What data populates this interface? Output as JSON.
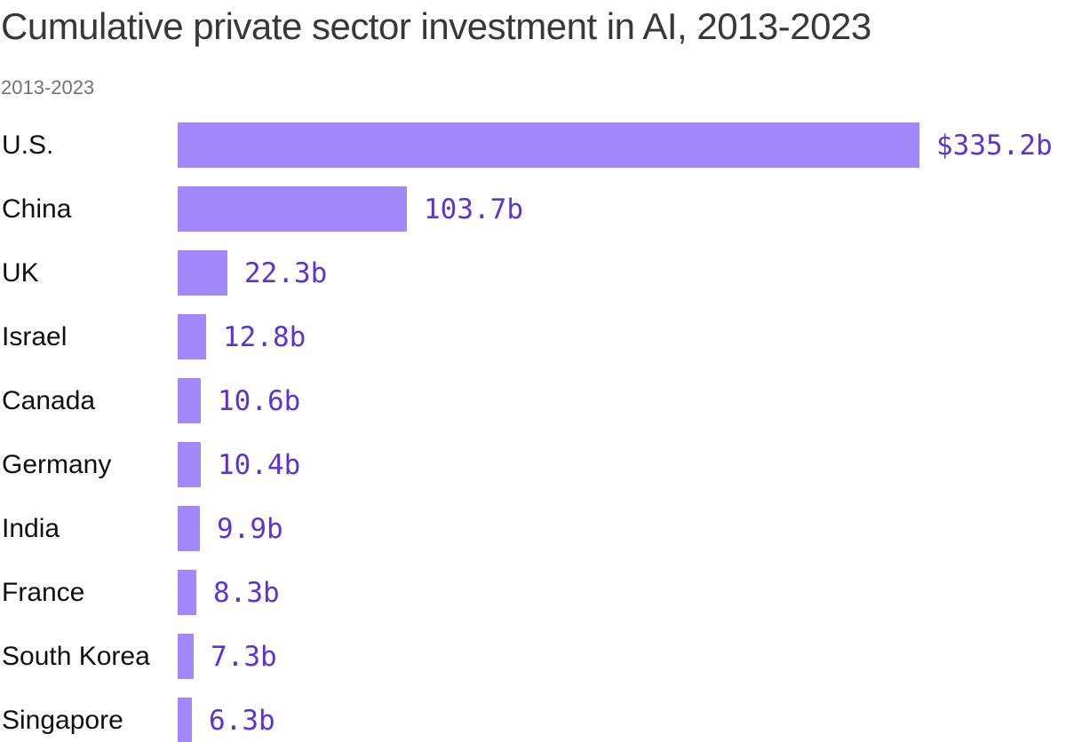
{
  "header": {
    "title": "Cumulative private sector investment in AI, 2013-2023",
    "subtitle": "2013-2023"
  },
  "chart_data": {
    "type": "bar",
    "orientation": "horizontal",
    "title": "Cumulative private sector investment in AI, 2013-2023",
    "subtitle": "2013-2023",
    "categories": [
      "U.S.",
      "China",
      "UK",
      "Israel",
      "Canada",
      "Germany",
      "India",
      "France",
      "South Korea",
      "Singapore"
    ],
    "values": [
      335.2,
      103.7,
      22.3,
      12.8,
      10.6,
      10.4,
      9.9,
      8.3,
      7.3,
      6.3
    ],
    "value_labels": [
      "$335.2b",
      "103.7b",
      "22.3b",
      "12.8b",
      "10.6b",
      "10.4b",
      "9.9b",
      "8.3b",
      "7.3b",
      "6.3b"
    ],
    "xlim": [
      0,
      335.2
    ],
    "grid": false,
    "legend": false,
    "colors": {
      "bar": "#a189fc",
      "value_text": "#5c33d6",
      "category_text": "#0f0f0f",
      "title_text": "#383838",
      "subtitle_text": "#737373"
    }
  }
}
